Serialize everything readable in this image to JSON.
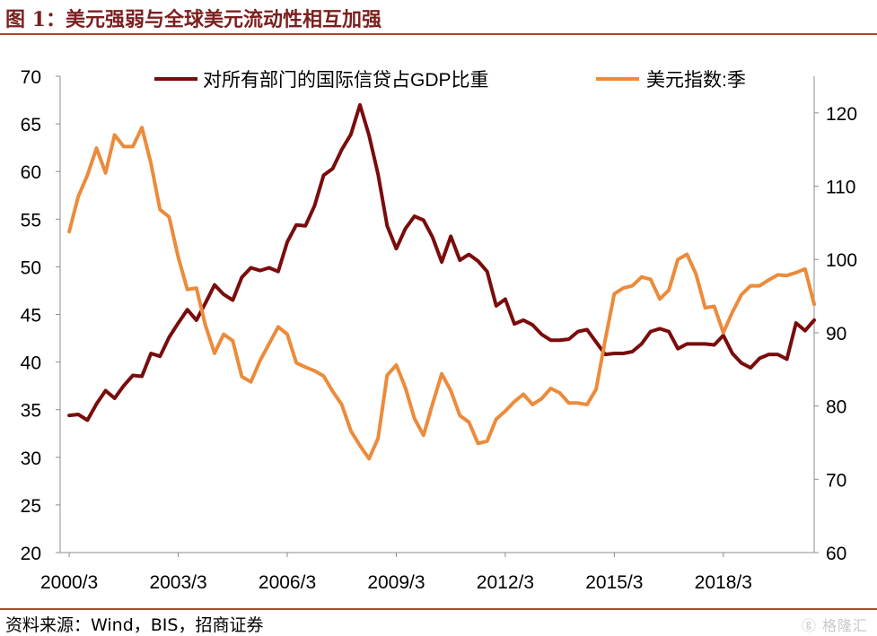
{
  "header": {
    "title": "图 1：美元强弱与全球美元流动性相互加强"
  },
  "footer": {
    "source_label": "资料来源：",
    "source_text": "Wind，BIS，招商证券"
  },
  "watermark": {
    "text": "格隆汇",
    "icon": "gelonghui-logo-icon"
  },
  "colors": {
    "series_dark": "#7a0c0c",
    "series_orange": "#ec8b3b",
    "axis": "#8c8c8c",
    "rule": "#b3462e"
  },
  "chart_data": {
    "type": "line",
    "title": "",
    "xlabel": "",
    "ylabel": "",
    "x_ticks": [
      "2000/3",
      "2003/3",
      "2006/3",
      "2009/3",
      "2012/3",
      "2015/3",
      "2018/3"
    ],
    "y_left": {
      "min": 20,
      "max": 70,
      "step": 5,
      "ticks": [
        "20",
        "25",
        "30",
        "35",
        "40",
        "45",
        "50",
        "55",
        "60",
        "65",
        "70"
      ]
    },
    "y_right": {
      "min": 60,
      "max": 125,
      "ticks": [
        "60",
        "70",
        "80",
        "90",
        "100",
        "110",
        "120"
      ]
    },
    "grid": false,
    "legend_position": "top",
    "series": [
      {
        "name": "对所有部门的国际信贷占GDP比重",
        "axis": "left",
        "color": "#7a0c0c",
        "start_year": 2000.25,
        "step_years": 0.25,
        "values": [
          34.4,
          34.5,
          33.9,
          35.6,
          37.0,
          36.2,
          37.5,
          38.6,
          38.5,
          40.9,
          40.6,
          42.6,
          44.1,
          45.5,
          44.4,
          46.2,
          48.1,
          47.1,
          46.5,
          48.9,
          49.9,
          49.6,
          49.9,
          49.5,
          52.6,
          54.4,
          54.3,
          56.4,
          59.6,
          60.3,
          62.3,
          63.9,
          67.0,
          63.8,
          59.7,
          54.3,
          51.9,
          54.0,
          55.3,
          54.9,
          53.1,
          50.5,
          53.2,
          50.7,
          51.3,
          50.6,
          49.5,
          45.9,
          46.6,
          44.0,
          44.4,
          43.9,
          42.9,
          42.3,
          42.3,
          42.4,
          43.2,
          43.4,
          42.1,
          40.8,
          40.9,
          40.9,
          41.1,
          41.9,
          43.2,
          43.5,
          43.2,
          41.4,
          41.9,
          41.9,
          41.9,
          41.8,
          42.8,
          40.9,
          39.9,
          39.4,
          40.4,
          40.8,
          40.8,
          40.3,
          44.1,
          43.3,
          44.4
        ]
      },
      {
        "name": "美元指数:季",
        "axis": "right",
        "color": "#ec8b3b",
        "start_year": 2000.25,
        "step_years": 0.25,
        "values": [
          103.8,
          108.6,
          111.5,
          115.2,
          111.8,
          117.0,
          115.4,
          115.4,
          118.0,
          113.1,
          106.8,
          105.8,
          100.3,
          95.9,
          96.1,
          91.0,
          87.2,
          89.8,
          88.9,
          84.0,
          83.3,
          86.2,
          88.5,
          90.8,
          89.8,
          85.9,
          85.3,
          84.8,
          84.1,
          82.0,
          80.2,
          76.6,
          74.6,
          72.8,
          75.6,
          84.2,
          85.6,
          82.5,
          78.3,
          76.0,
          80.3,
          84.4,
          82.1,
          78.7,
          77.8,
          74.9,
          75.2,
          78.2,
          79.3,
          80.6,
          81.6,
          80.2,
          81.0,
          82.4,
          81.8,
          80.4,
          80.4,
          80.2,
          82.3,
          89.0,
          95.3,
          96.1,
          96.4,
          97.6,
          97.3,
          94.6,
          95.8,
          100.0,
          100.7,
          98.0,
          93.4,
          93.6,
          90.0,
          92.8,
          95.2,
          96.4,
          96.4,
          97.2,
          97.9,
          97.8,
          98.2,
          98.7,
          93.9
        ]
      }
    ]
  }
}
